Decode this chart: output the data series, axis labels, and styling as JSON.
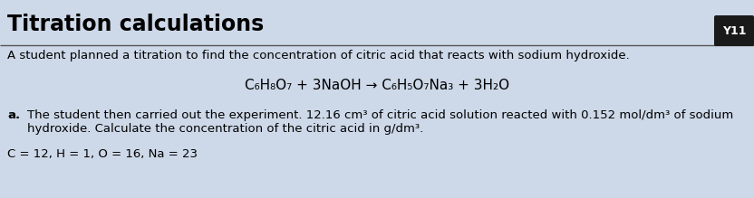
{
  "title": "Titration calculations",
  "badge_text": "Y11",
  "badge_bg": "#1a1a1a",
  "badge_fg": "#ffffff",
  "bg_color": "#cdd8e8",
  "title_color": "#000000",
  "title_fontsize": 17,
  "line1": "A student planned a titration to find the concentration of citric acid that reacts with sodium hydroxide.",
  "equation": "C₆H₈O₇ + 3NaOH → C₆H₅O₇Na₃ + 3H₂O",
  "question_label": "a.",
  "question_line1": "The student then carried out the experiment. 12.16 cm³ of citric acid solution reacted with 0.152 mol/dm³ of sodium",
  "question_line2": "hydroxide. Calculate the concentration of the citric acid in g/dm³.",
  "footer": "C = 12, H = 1, O = 16, Na = 23",
  "body_fontsize": 9.5,
  "equation_fontsize": 11,
  "footer_fontsize": 9.5,
  "separator_color": "#555555",
  "separator_linewidth": 1.0
}
